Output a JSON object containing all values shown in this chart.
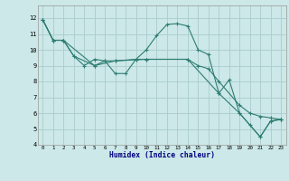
{
  "xlabel": "Humidex (Indice chaleur)",
  "ylabel": "",
  "bg_color": "#cce8e8",
  "grid_color": "#aacccc",
  "line_color": "#2e7d72",
  "xlim": [
    -0.5,
    23.5
  ],
  "ylim": [
    4,
    12.8
  ],
  "yticks": [
    4,
    5,
    6,
    7,
    8,
    9,
    10,
    11,
    12
  ],
  "xticks": [
    0,
    1,
    2,
    3,
    4,
    5,
    6,
    7,
    8,
    9,
    10,
    11,
    12,
    13,
    14,
    15,
    16,
    17,
    18,
    19,
    20,
    21,
    22,
    23
  ],
  "line1_x": [
    0,
    1,
    2,
    3,
    4,
    5,
    6,
    7,
    8,
    9,
    10,
    11,
    12,
    13,
    14,
    15,
    16,
    17,
    18,
    19,
    20,
    21,
    22,
    23
  ],
  "line1_y": [
    11.9,
    10.6,
    10.6,
    9.6,
    9.0,
    9.4,
    9.3,
    8.5,
    8.5,
    9.4,
    10.0,
    10.9,
    11.6,
    11.65,
    11.5,
    10.0,
    9.7,
    7.25,
    8.1,
    6.0,
    5.25,
    4.5,
    5.5,
    5.6
  ],
  "line2_x": [
    0,
    1,
    2,
    3,
    5,
    6,
    7,
    9,
    10,
    14,
    15,
    16,
    17,
    19,
    20,
    21,
    22,
    23
  ],
  "line2_y": [
    11.9,
    10.6,
    10.6,
    9.6,
    9.0,
    9.3,
    9.3,
    9.4,
    9.4,
    9.4,
    9.0,
    8.8,
    8.0,
    6.5,
    6.0,
    5.8,
    5.7,
    5.6
  ],
  "line3_x": [
    0,
    1,
    2,
    5,
    7,
    10,
    14,
    17,
    19,
    21,
    22,
    23
  ],
  "line3_y": [
    11.9,
    10.6,
    10.6,
    9.0,
    9.3,
    9.4,
    9.4,
    7.25,
    6.0,
    4.5,
    5.5,
    5.6
  ]
}
